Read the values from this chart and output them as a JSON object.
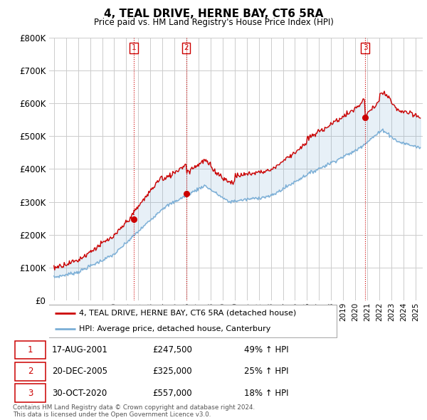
{
  "title": "4, TEAL DRIVE, HERNE BAY, CT6 5RA",
  "subtitle": "Price paid vs. HM Land Registry's House Price Index (HPI)",
  "ylabel_ticks": [
    "£0",
    "£100K",
    "£200K",
    "£300K",
    "£400K",
    "£500K",
    "£600K",
    "£700K",
    "£800K"
  ],
  "ylim": [
    0,
    800000
  ],
  "xlim_start": 1994.6,
  "xlim_end": 2025.6,
  "line1_color": "#cc0000",
  "line2_color": "#7aaed6",
  "background_color": "#ffffff",
  "grid_color": "#cccccc",
  "legend_label1": "4, TEAL DRIVE, HERNE BAY, CT6 5RA (detached house)",
  "legend_label2": "HPI: Average price, detached house, Canterbury",
  "purchases": [
    {
      "num": 1,
      "date": "17-AUG-2001",
      "year": 2001.625,
      "price": 247500,
      "hpi_pct": "49% ↑ HPI"
    },
    {
      "num": 2,
      "date": "20-DEC-2005",
      "year": 2005.97,
      "price": 325000,
      "hpi_pct": "25% ↑ HPI"
    },
    {
      "num": 3,
      "date": "30-OCT-2020",
      "year": 2020.83,
      "price": 557000,
      "hpi_pct": "18% ↑ HPI"
    }
  ],
  "footer": "Contains HM Land Registry data © Crown copyright and database right 2024.\nThis data is licensed under the Open Government Licence v3.0.",
  "purchase_box_color": "#cc0000"
}
